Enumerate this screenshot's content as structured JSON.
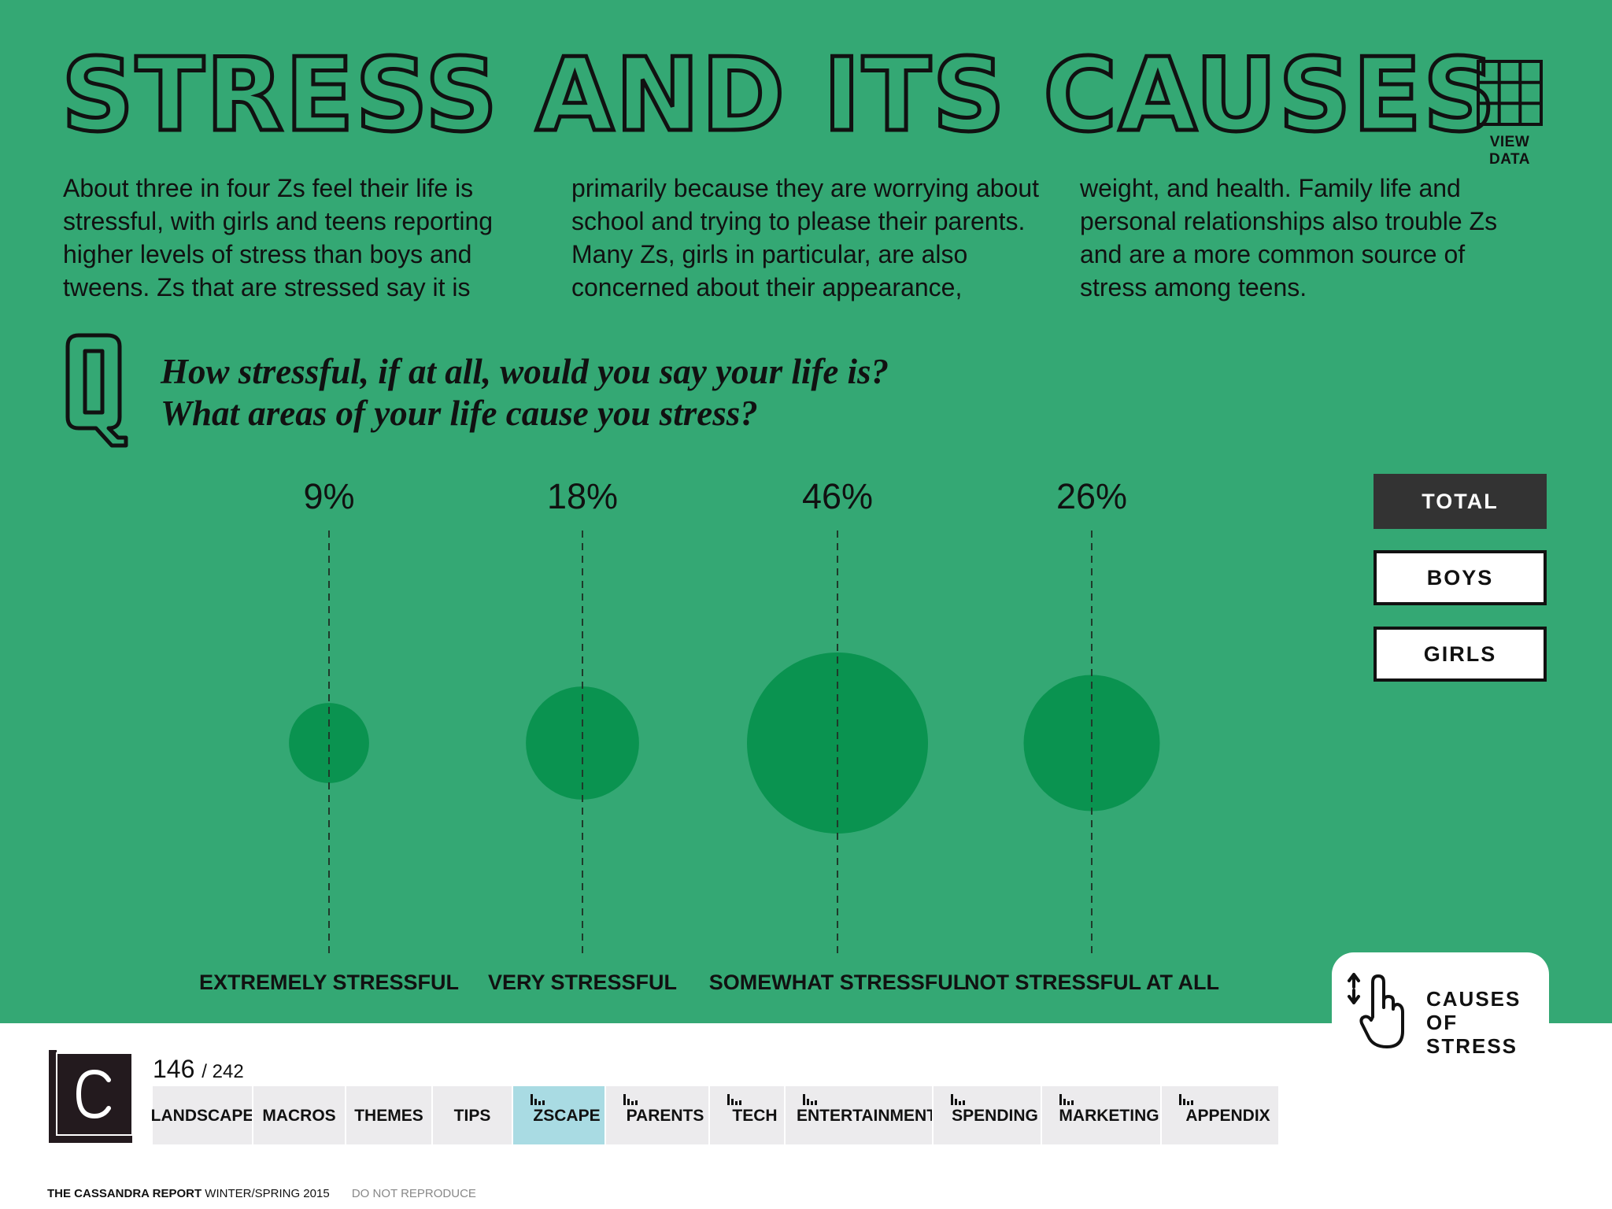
{
  "header": {
    "title": "STRESS AND ITS CAUSES",
    "view_data_label": "VIEW DATA"
  },
  "intro": {
    "col1": "About three in four Zs feel their life is stressful, with girls and teens reporting higher levels of stress than boys and tweens. Zs that are stressed say it is",
    "col2": "primarily because they are worrying about school and trying to please their parents. Many Zs, girls in particular, are also concerned about their appearance,",
    "col3": "weight, and health. Family life and personal relationships also trouble Zs and are a more common source of stress among teens."
  },
  "question": {
    "line1": "How stressful, if at all, would you say your life is?",
    "line2": "What areas of your life cause you stress?"
  },
  "chart_data": {
    "type": "scatter",
    "categories": [
      "EXTREMELY STRESSFUL",
      "VERY STRESSFUL",
      "SOMEWHAT STRESSFUL",
      "NOT STRESSFUL AT ALL"
    ],
    "values": [
      9,
      18,
      46,
      26
    ],
    "value_labels": [
      "9%",
      "18%",
      "46%",
      "26%"
    ],
    "unit": "%",
    "encoding": "bubble area",
    "bubble_color": "#0a9350",
    "title": "",
    "xlabel": "",
    "ylabel": "",
    "grid": false
  },
  "filters": {
    "options": [
      "TOTAL",
      "BOYS",
      "GIRLS"
    ],
    "selected": "TOTAL"
  },
  "causes_link": {
    "label_line1": "CAUSES",
    "label_line2": "OF STRESS"
  },
  "pager": {
    "current": "146",
    "total": "/ 242"
  },
  "nav": {
    "tabs": [
      {
        "label": "LANDSCAPE",
        "bars": false
      },
      {
        "label": "MACROS",
        "bars": false
      },
      {
        "label": "THEMES",
        "bars": false
      },
      {
        "label": "TIPS",
        "bars": false
      },
      {
        "label": "ZSCAPE",
        "bars": true,
        "active": true
      },
      {
        "label": "PARENTS",
        "bars": true
      },
      {
        "label": "TECH",
        "bars": true
      },
      {
        "label": "ENTERTAINMENT",
        "bars": true
      },
      {
        "label": "SPENDING",
        "bars": true
      },
      {
        "label": "MARKETING",
        "bars": true
      },
      {
        "label": "APPENDIX",
        "bars": true
      }
    ]
  },
  "footer": {
    "brand": "THE CASSANDRA REPORT",
    "edition": "WINTER/SPRING 2015",
    "notice": "DO NOT REPRODUCE"
  },
  "colors": {
    "background": "#34a874",
    "bubble": "#0a9350",
    "active_tab": "#a9dbe3",
    "active_filter": "#333333"
  }
}
